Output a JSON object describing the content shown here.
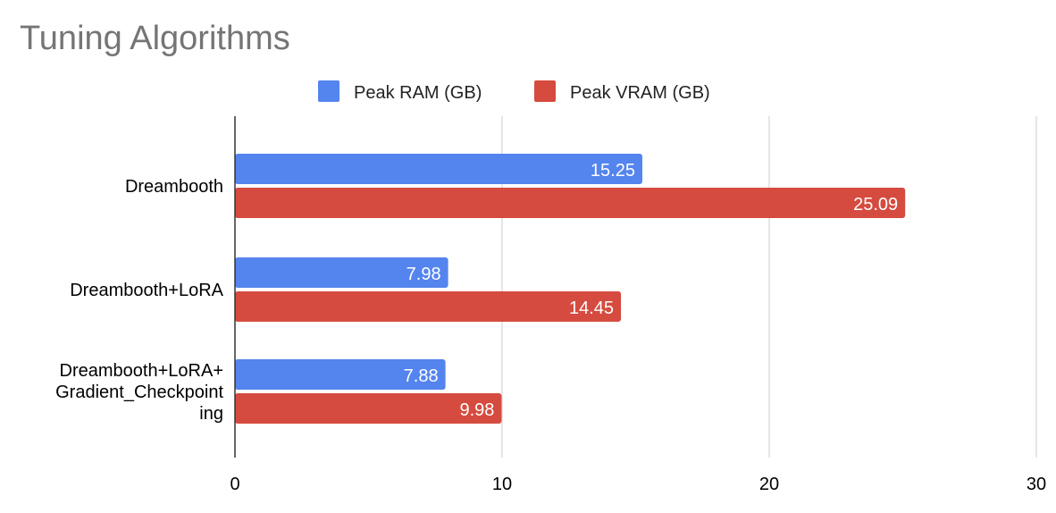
{
  "chart_data": {
    "type": "bar",
    "orientation": "horizontal",
    "title": "Tuning Algorithms",
    "categories": [
      [
        "Dreambooth"
      ],
      [
        "Dreambooth+LoRA"
      ],
      [
        "Dreambooth+LoRA+",
        "Gradient_Checkpoint",
        "ing"
      ]
    ],
    "series": [
      {
        "name": "Peak RAM (GB)",
        "color": "#5484ED",
        "values": [
          15.25,
          7.98,
          7.88
        ],
        "labels": [
          "15.25",
          "7.98",
          "7.88"
        ]
      },
      {
        "name": "Peak VRAM (GB)",
        "color": "#D54B3F",
        "values": [
          25.09,
          14.45,
          9.98
        ],
        "labels": [
          "25.09",
          "14.45",
          "9.98"
        ]
      }
    ],
    "xlim": [
      0,
      30
    ],
    "xticks": [
      "0",
      "10",
      "20",
      "30"
    ],
    "grid": true,
    "legend": "top"
  }
}
